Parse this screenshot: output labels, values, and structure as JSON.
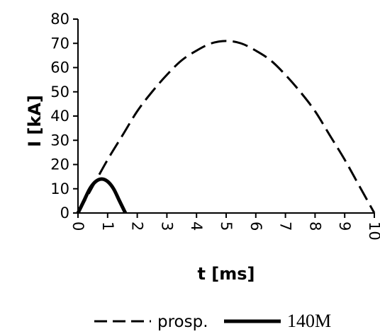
{
  "chart_data": {
    "type": "line",
    "xlabel": "t [ms]",
    "ylabel": "I [kA]",
    "xlim": [
      0,
      10
    ],
    "ylim": [
      0,
      80
    ],
    "xticks": [
      "0",
      "1",
      "2",
      "3",
      "4",
      "5",
      "6",
      "7",
      "8",
      "9",
      "10"
    ],
    "yticks": [
      "0",
      "10",
      "20",
      "30",
      "40",
      "50",
      "60",
      "70",
      "80"
    ],
    "grid": false,
    "legend_position": "bottom",
    "series": [
      {
        "name": "prosp.",
        "style": "dashed",
        "color": "#000000",
        "x": [
          0,
          0.5,
          1,
          1.5,
          2,
          2.5,
          3,
          3.5,
          4,
          4.5,
          5,
          5.5,
          6,
          6.5,
          7,
          7.5,
          8,
          8.5,
          9,
          9.5,
          10
        ],
        "y": [
          0,
          11,
          22,
          32,
          42,
          50,
          57,
          63,
          67,
          70,
          71,
          70,
          67,
          63,
          57,
          50,
          42,
          32,
          22,
          11,
          0
        ]
      },
      {
        "name": "140M",
        "style": "solid",
        "color": "#000000",
        "x": [
          0,
          0.2,
          0.4,
          0.6,
          0.8,
          1.0,
          1.2,
          1.4,
          1.6
        ],
        "y": [
          0,
          5,
          10,
          13,
          14,
          13,
          10,
          5,
          0
        ]
      }
    ]
  }
}
